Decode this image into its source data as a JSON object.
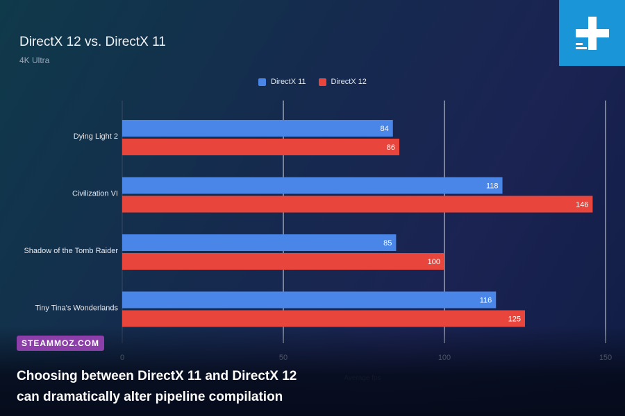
{
  "chart_data": {
    "type": "bar",
    "orientation": "horizontal",
    "title": "DirectX 12 vs. DirectX 11",
    "subtitle": "4K Ultra",
    "xlabel": "Average fps",
    "ylabel": "",
    "xlim": [
      0,
      150
    ],
    "ticks": [
      0,
      50,
      100,
      150
    ],
    "tick_labels": [
      "0",
      "50",
      "100",
      "150"
    ],
    "grid": true,
    "legend_position": "top",
    "categories": [
      "Dying Light 2",
      "Civilization VI",
      "Shadow of the Tomb Raider",
      "Tiny Tina's Wonderlands"
    ],
    "series": [
      {
        "name": "DirectX 11",
        "color": "#4a86e8",
        "values": [
          84,
          118,
          85,
          116
        ]
      },
      {
        "name": "DirectX 12",
        "color": "#e8453c",
        "values": [
          86,
          146,
          100,
          125
        ]
      }
    ]
  },
  "brand": {
    "badge": "STEAMMOZ.COM",
    "logo_icon": "plus-logo-icon"
  },
  "caption": {
    "line1": "Choosing between DirectX 11 and DirectX 12",
    "line2": "can dramatically alter pipeline compilation"
  }
}
